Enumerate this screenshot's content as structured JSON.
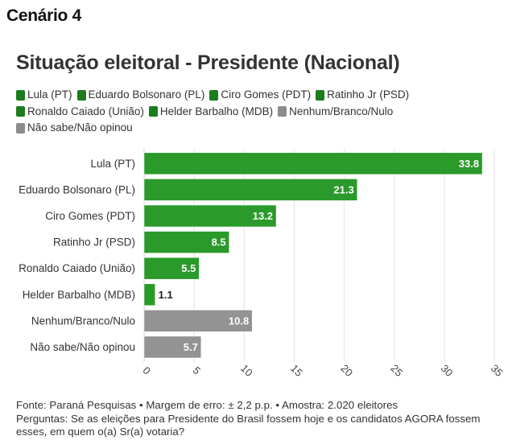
{
  "page": {
    "scenario_label": "Cenário 4",
    "title": "Situação eleitoral - Presidente (Nacional)",
    "footer_source": "Fonte: Paraná Pesquisas • Margem de erro: ± 2,2 p.p. • Amostra: 2.020 eleitores",
    "footer_question": "Perguntas: Se as eleições para Presidente do Brasil fossem hoje e os candidatos AGORA fossem esses, em quem o(a) Sr(a) votaria?"
  },
  "colors": {
    "green": "#2a9a2a",
    "gray": "#939393",
    "legend_green": "#1b7d1b",
    "legend_gray": "#8c8c8c"
  },
  "legend": [
    {
      "label": "Lula (PT)",
      "color": "green"
    },
    {
      "label": "Eduardo Bolsonaro (PL)",
      "color": "green"
    },
    {
      "label": "Ciro Gomes (PDT)",
      "color": "green"
    },
    {
      "label": "Ratinho Jr (PSD)",
      "color": "green"
    },
    {
      "label": "Ronaldo Caiado (União)",
      "color": "green"
    },
    {
      "label": "Helder Barbalho (MDB)",
      "color": "green"
    },
    {
      "label": "Nenhum/Branco/Nulo",
      "color": "gray"
    },
    {
      "label": "Não sabe/Não opinou",
      "color": "gray"
    }
  ],
  "chart_data": {
    "type": "bar",
    "orientation": "horizontal",
    "categories": [
      "Lula (PT)",
      "Eduardo Bolsonaro (PL)",
      "Ciro Gomes (PDT)",
      "Ratinho Jr (PSD)",
      "Ronaldo Caiado (União)",
      "Helder Barbalho (MDB)",
      "Nenhum/Branco/Nulo",
      "Não sabe/Não opinou"
    ],
    "values": [
      33.8,
      21.3,
      13.2,
      8.5,
      5.5,
      1.1,
      10.8,
      5.7
    ],
    "bar_colors": [
      "green",
      "green",
      "green",
      "green",
      "green",
      "green",
      "gray",
      "gray"
    ],
    "value_labels": [
      "33.8",
      "21.3",
      "13.2",
      "8.5",
      "5.5",
      "1.1",
      "10.8",
      "5.7"
    ],
    "xlim": [
      0,
      35
    ],
    "xticks": [
      0,
      5,
      10,
      15,
      20,
      25,
      30,
      35
    ],
    "xtick_labels": [
      "0",
      "5",
      "10",
      "15",
      "20",
      "25",
      "30",
      "35"
    ],
    "grid": true,
    "legend_placement": "top-left"
  }
}
